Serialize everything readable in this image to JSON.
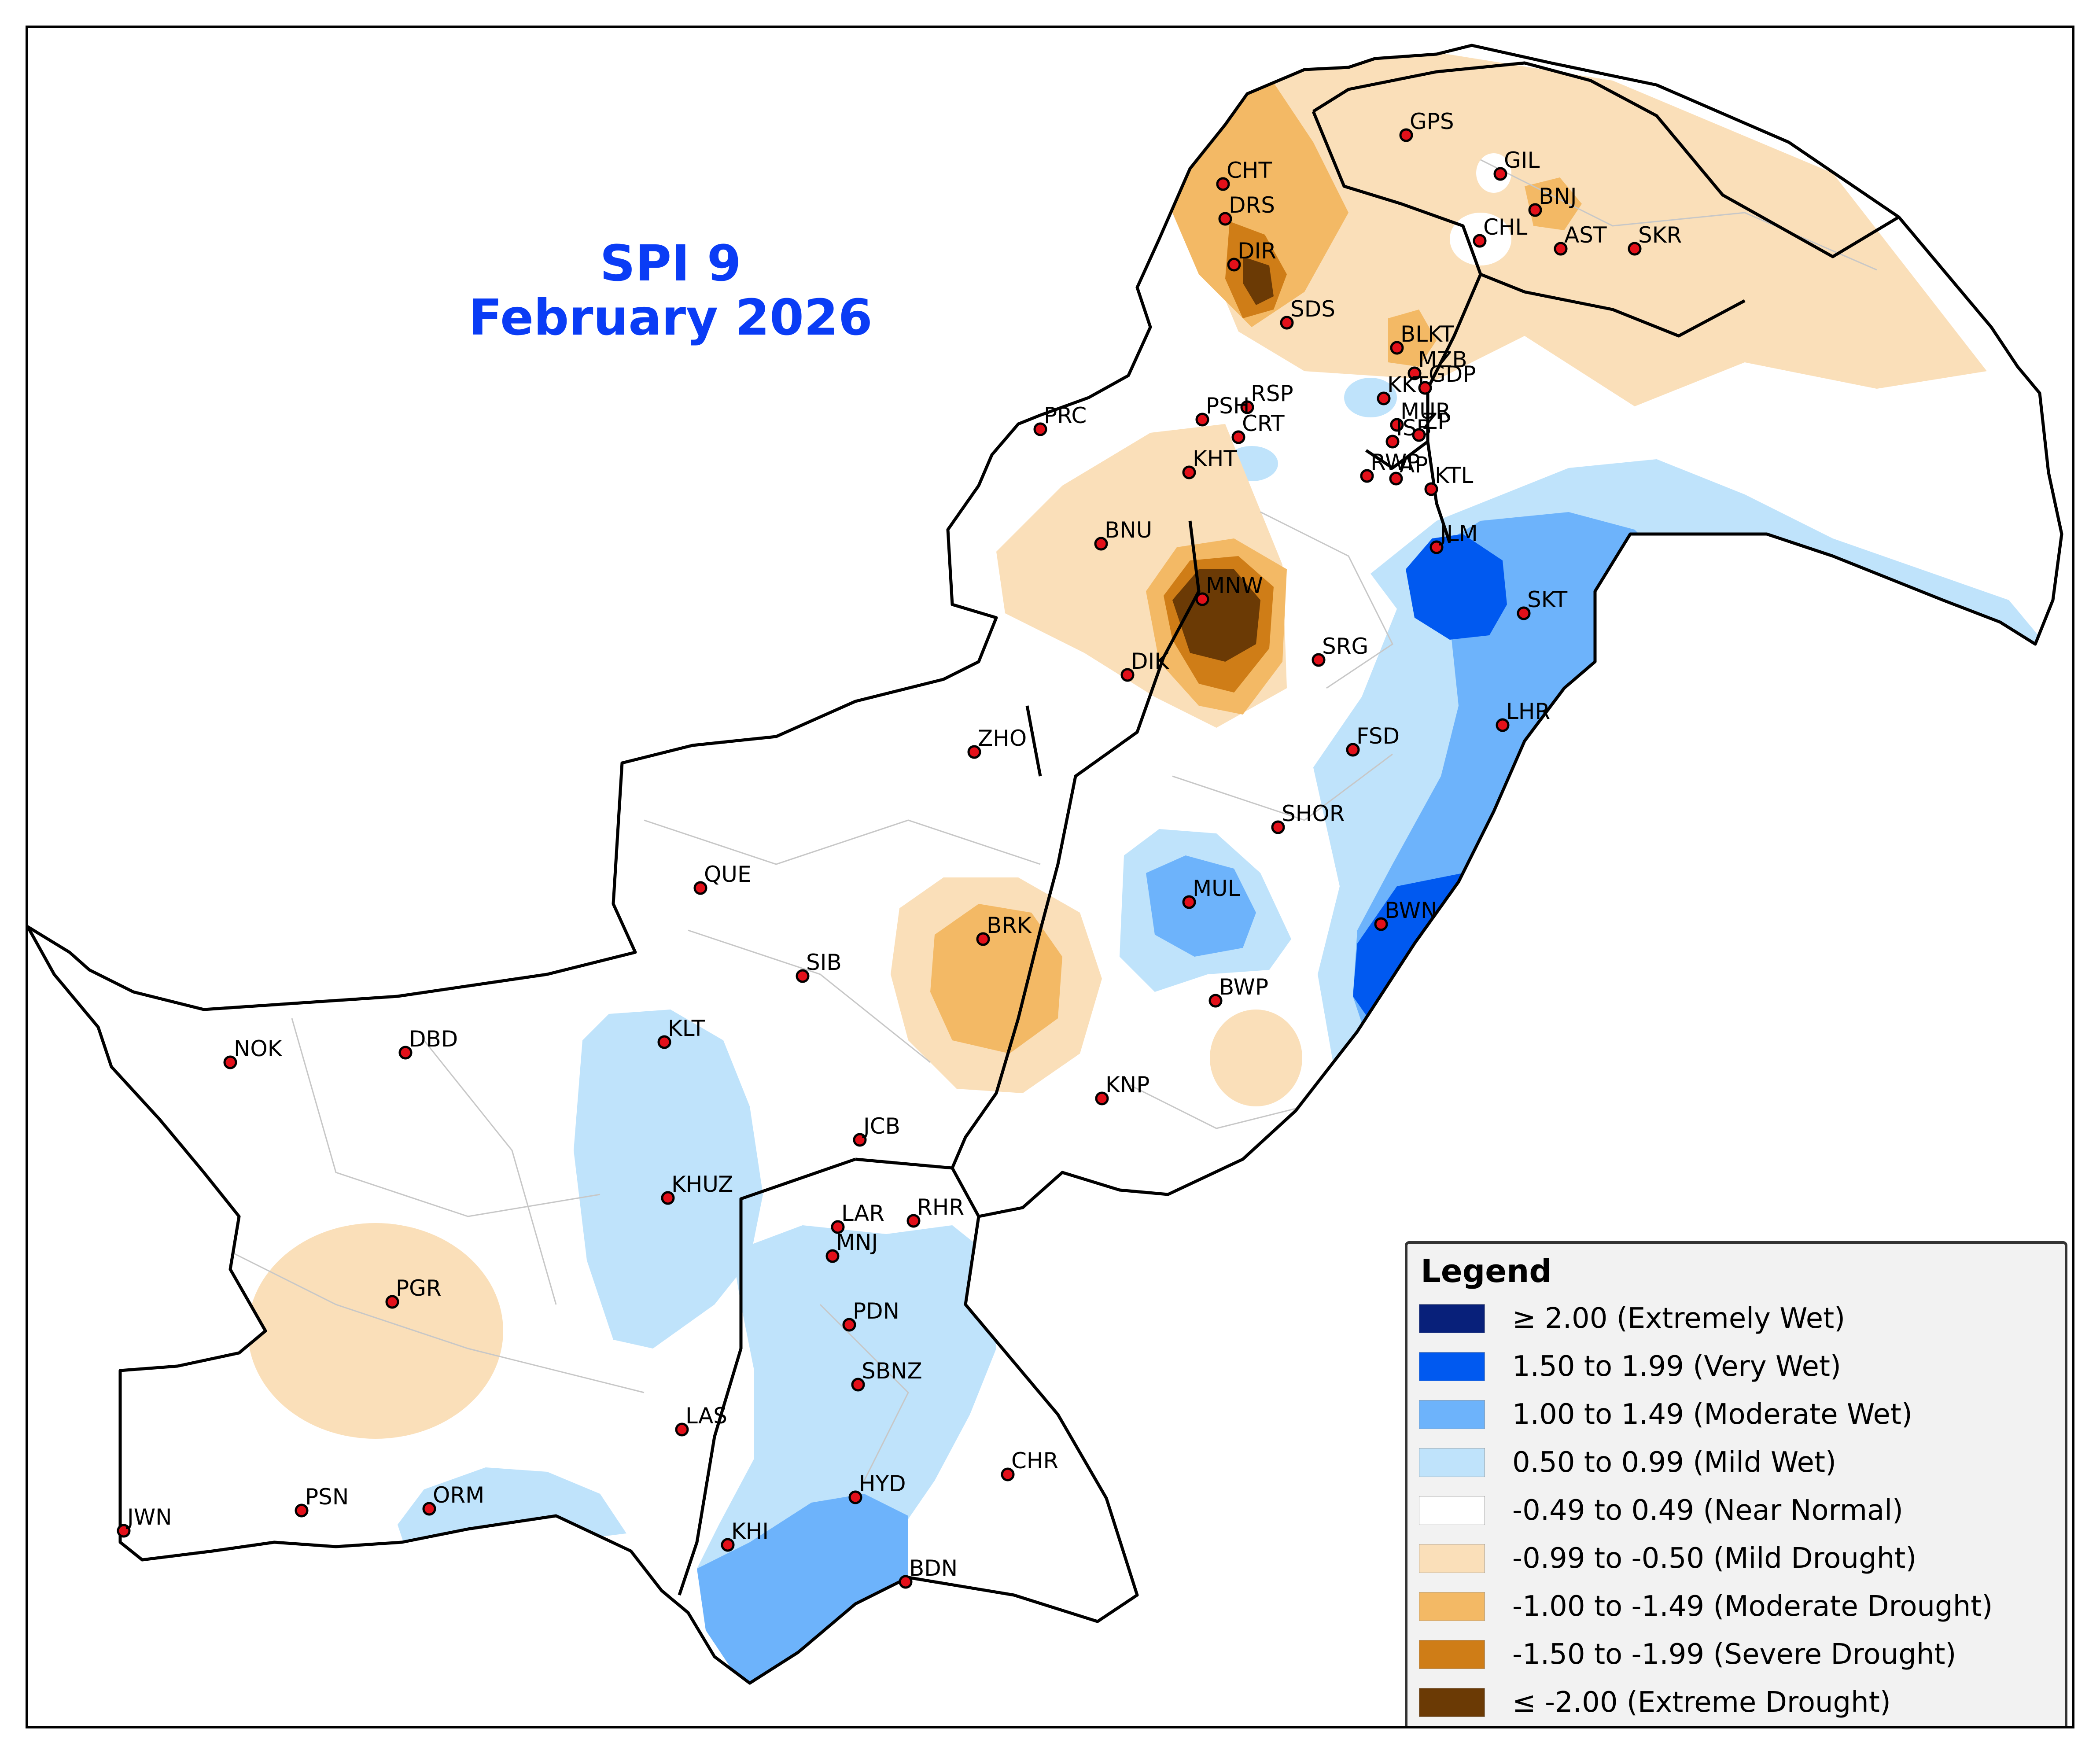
{
  "title": {
    "line1": "SPI 9",
    "line2": "February 2026"
  },
  "legend": {
    "title": "Legend",
    "items": [
      {
        "label": "≥ 2.00 (Extremely Wet)",
        "color": "#08207a"
      },
      {
        "label": "1.50 to 1.99 (Very Wet)",
        "color": "#0059f0"
      },
      {
        "label": "1.00 to 1.49 (Moderate Wet)",
        "color": "#6db3fb"
      },
      {
        "label": "0.50 to 0.99 (Mild Wet)",
        "color": "#bfe3fb"
      },
      {
        "label": "-0.49 to 0.49 (Near Normal)",
        "color": "#ffffff"
      },
      {
        "label": "-0.99 to -0.50 (Mild Drought)",
        "color": "#fadfb9"
      },
      {
        "label": "-1.00 to -1.49 (Moderate Drought)",
        "color": "#f3b965"
      },
      {
        "label": "-1.50 to -1.99 (Severe Drought)",
        "color": "#cf7d17"
      },
      {
        "label": "≤ -2.00 (Extreme Drought)",
        "color": "#6b3a05"
      }
    ]
  },
  "stations": [
    {
      "code": "GPS",
      "category": "Mild Drought"
    },
    {
      "code": "GIL",
      "category": "Near Normal"
    },
    {
      "code": "CHT",
      "category": "Moderate Drought"
    },
    {
      "code": "BNJ",
      "category": "Moderate Drought"
    },
    {
      "code": "DRS",
      "category": "Severe Drought"
    },
    {
      "code": "CHL",
      "category": "Near Normal"
    },
    {
      "code": "AST",
      "category": "Mild Drought"
    },
    {
      "code": "SKR",
      "category": "Mild Drought"
    },
    {
      "code": "DIR",
      "category": "Severe Drought"
    },
    {
      "code": "SDS",
      "category": "Near Normal"
    },
    {
      "code": "BLKT",
      "category": "Moderate Drought"
    },
    {
      "code": "MZB",
      "category": "Near Normal"
    },
    {
      "code": "KKT",
      "category": "Mild Wet"
    },
    {
      "code": "GDP",
      "category": "Near Normal"
    },
    {
      "code": "RSP",
      "category": "Near Normal"
    },
    {
      "code": "PRC",
      "category": "Near Normal"
    },
    {
      "code": "PSH",
      "category": "Near Normal"
    },
    {
      "code": "MUR",
      "category": "Moderate Drought"
    },
    {
      "code": "CRT",
      "category": "Mild Wet"
    },
    {
      "code": "ISB",
      "category": "Near Normal"
    },
    {
      "code": "ZP",
      "category": "Near Normal"
    },
    {
      "code": "KHT",
      "category": "Mild Drought"
    },
    {
      "code": "RWP",
      "category": "Near Normal"
    },
    {
      "code": "AP",
      "category": "Near Normal"
    },
    {
      "code": "KTL",
      "category": "Near Normal"
    },
    {
      "code": "BNU",
      "category": "Mild Drought"
    },
    {
      "code": "JLM",
      "category": "Very Wet"
    },
    {
      "code": "MNW",
      "category": "Extreme Drought"
    },
    {
      "code": "SKT",
      "category": "Moderate Wet"
    },
    {
      "code": "SRG",
      "category": "Near Normal"
    },
    {
      "code": "DIK",
      "category": "Mild Drought"
    },
    {
      "code": "LHR",
      "category": "Moderate Wet"
    },
    {
      "code": "FSD",
      "category": "Mild Wet"
    },
    {
      "code": "ZHO",
      "category": "Near Normal"
    },
    {
      "code": "SHOR",
      "category": "Near Normal"
    },
    {
      "code": "QUE",
      "category": "Near Normal"
    },
    {
      "code": "MUL",
      "category": "Moderate Wet"
    },
    {
      "code": "BWN",
      "category": "Very Wet"
    },
    {
      "code": "BRK",
      "category": "Moderate Drought"
    },
    {
      "code": "SIB",
      "category": "Near Normal"
    },
    {
      "code": "BWP",
      "category": "Mild Drought"
    },
    {
      "code": "KLT",
      "category": "Mild Wet"
    },
    {
      "code": "NOK",
      "category": "Near Normal"
    },
    {
      "code": "DBD",
      "category": "Near Normal"
    },
    {
      "code": "KNP",
      "category": "Near Normal"
    },
    {
      "code": "JCB",
      "category": "Near Normal"
    },
    {
      "code": "KHUZ",
      "category": "Mild Wet"
    },
    {
      "code": "LAR",
      "category": "Mild Wet"
    },
    {
      "code": "RHR",
      "category": "Mild Wet"
    },
    {
      "code": "MNJ",
      "category": "Mild Wet"
    },
    {
      "code": "PGR",
      "category": "Mild Drought"
    },
    {
      "code": "PDN",
      "category": "Mild Wet"
    },
    {
      "code": "SBNZ",
      "category": "Mild Wet"
    },
    {
      "code": "LAS",
      "category": "Near Normal"
    },
    {
      "code": "CHR",
      "category": "Near Normal"
    },
    {
      "code": "HYD",
      "category": "Moderate Wet"
    },
    {
      "code": "PSN",
      "category": "Mild Wet"
    },
    {
      "code": "ORM",
      "category": "Mild Wet"
    },
    {
      "code": "JWN",
      "category": "Near Normal"
    },
    {
      "code": "KHI",
      "category": "Moderate Wet"
    },
    {
      "code": "BDN",
      "category": "Near Normal"
    }
  ]
}
